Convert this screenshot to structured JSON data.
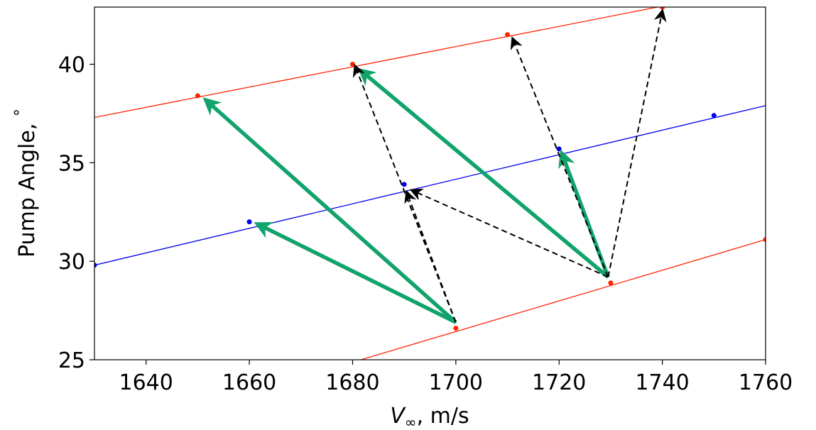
{
  "chart_data": {
    "type": "line",
    "xlabel": {
      "symbol": "V",
      "subscript": "∞",
      "rest": ", m/s"
    },
    "ylabel": {
      "text": "Pump Angle, ",
      "superscript": "°"
    },
    "xlim": [
      1630,
      1760
    ],
    "ylim": [
      25,
      42.9
    ],
    "xticks": [
      1640,
      1660,
      1680,
      1700,
      1720,
      1740,
      1760
    ],
    "yticks": [
      25,
      30,
      35,
      40
    ],
    "series": [
      {
        "color": "#ff2200",
        "x": [
          1630,
          1741
        ],
        "values": [
          37.3,
          43.0
        ]
      },
      {
        "color": "#0000ee",
        "x": [
          1630,
          1760
        ],
        "values": [
          29.8,
          37.9
        ]
      },
      {
        "color": "#ff2200",
        "x": [
          1681.6,
          1760
        ],
        "values": [
          25.0,
          31.1
        ]
      }
    ],
    "points": [
      {
        "color": "#ff2200",
        "x": [
          1650,
          1680,
          1710,
          1740
        ],
        "values": [
          38.4,
          40.0,
          41.5,
          42.9
        ]
      },
      {
        "color": "#0000ee",
        "x": [
          1630,
          1660,
          1690,
          1720,
          1750
        ],
        "values": [
          29.8,
          32.0,
          33.9,
          35.7,
          37.4
        ]
      },
      {
        "color": "#ff2200",
        "x": [
          1700,
          1730,
          1760
        ],
        "values": [
          26.6,
          28.9,
          31.1
        ]
      }
    ],
    "arrows": [
      {
        "color": "#11a36b",
        "dashed": false,
        "x": [
          1700,
          1661.5
        ],
        "values": [
          26.9,
          31.9
        ]
      },
      {
        "color": "#11a36b",
        "dashed": false,
        "x": [
          1700,
          1651.5
        ],
        "values": [
          26.9,
          38.2
        ]
      },
      {
        "color": "#11a36b",
        "dashed": false,
        "x": [
          1729.5,
          1681.5
        ],
        "values": [
          29.2,
          39.7
        ]
      },
      {
        "color": "#11a36b",
        "dashed": false,
        "x": [
          1729.5,
          1720.5
        ],
        "values": [
          29.2,
          35.5
        ]
      },
      {
        "color": "#000000",
        "dashed": true,
        "x": [
          1700,
          1680.5
        ],
        "values": [
          26.9,
          39.9
        ]
      },
      {
        "color": "#000000",
        "dashed": true,
        "x": [
          1700,
          1690.5
        ],
        "values": [
          26.9,
          33.5
        ]
      },
      {
        "color": "#000000",
        "dashed": true,
        "x": [
          1729.5,
          1691.5
        ],
        "values": [
          29.2,
          33.6
        ]
      },
      {
        "color": "#000000",
        "dashed": true,
        "x": [
          1729.5,
          1711
        ],
        "values": [
          29.2,
          41.3
        ]
      },
      {
        "color": "#000000",
        "dashed": true,
        "x": [
          1729.5,
          1740
        ],
        "values": [
          29.2,
          42.7
        ]
      }
    ]
  }
}
